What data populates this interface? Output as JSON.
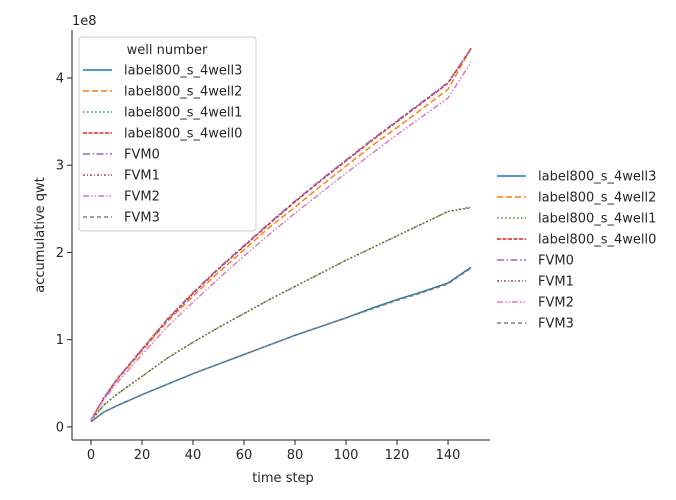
{
  "chart_data": {
    "type": "line",
    "xlabel": "time step",
    "ylabel": "accumulative qwt",
    "y_offset_text": "1e8",
    "y_scale": 100000000,
    "xlim": [
      -7.45,
      156.45
    ],
    "ylim": [
      -0.15,
      4.55
    ],
    "xticks": [
      0,
      20,
      40,
      60,
      80,
      100,
      120,
      140
    ],
    "yticks": [
      0,
      1,
      2,
      3,
      4
    ],
    "grid": false,
    "legend_inner": {
      "title": "well number",
      "placement": "upper-left"
    },
    "legend_outer": {
      "placement": "center-right"
    },
    "x": [
      0,
      5,
      10,
      20,
      30,
      40,
      50,
      60,
      70,
      80,
      90,
      100,
      110,
      120,
      130,
      140,
      149
    ],
    "series": [
      {
        "name": "label800_s_4well3",
        "color": "#1f77b4",
        "dash": "solid",
        "values": [
          0.06,
          0.17,
          0.24,
          0.37,
          0.49,
          0.61,
          0.72,
          0.83,
          0.94,
          1.05,
          1.15,
          1.25,
          1.36,
          1.46,
          1.55,
          1.65,
          1.83
        ]
      },
      {
        "name": "label800_s_4well2",
        "color": "#ff7f0e",
        "dash": "dashed",
        "values": [
          0.08,
          0.32,
          0.53,
          0.87,
          1.21,
          1.5,
          1.77,
          2.03,
          2.29,
          2.52,
          2.76,
          2.99,
          3.22,
          3.43,
          3.65,
          3.87,
          4.34
        ]
      },
      {
        "name": "label800_s_4well1",
        "color": "#2ca02c",
        "dash": "dotted",
        "values": [
          0.07,
          0.25,
          0.37,
          0.58,
          0.79,
          0.97,
          1.14,
          1.3,
          1.46,
          1.61,
          1.76,
          1.91,
          2.05,
          2.19,
          2.33,
          2.47,
          2.51
        ]
      },
      {
        "name": "label800_s_4well0",
        "color": "#d62728",
        "dash": "dashdot-dense",
        "values": [
          0.08,
          0.33,
          0.54,
          0.89,
          1.23,
          1.53,
          1.81,
          2.07,
          2.33,
          2.58,
          2.82,
          3.05,
          3.28,
          3.5,
          3.72,
          3.94,
          4.34
        ]
      },
      {
        "name": "FVM0",
        "color": "#9467bd",
        "dash": "dashdot",
        "values": [
          0.08,
          0.33,
          0.54,
          0.89,
          1.24,
          1.54,
          1.82,
          2.08,
          2.34,
          2.59,
          2.83,
          3.06,
          3.29,
          3.51,
          3.73,
          3.95,
          4.33
        ]
      },
      {
        "name": "FVM1",
        "color": "#8c564b",
        "dash": "dotdash",
        "values": [
          0.07,
          0.25,
          0.37,
          0.58,
          0.79,
          0.97,
          1.14,
          1.3,
          1.46,
          1.61,
          1.76,
          1.91,
          2.05,
          2.19,
          2.33,
          2.47,
          2.52
        ]
      },
      {
        "name": "FVM2",
        "color": "#e377c2",
        "dash": "dashdotdot",
        "values": [
          0.08,
          0.31,
          0.5,
          0.83,
          1.15,
          1.43,
          1.7,
          1.96,
          2.21,
          2.45,
          2.68,
          2.91,
          3.13,
          3.35,
          3.56,
          3.77,
          4.18
        ]
      },
      {
        "name": "FVM3",
        "color": "#7f7f7f",
        "dash": "loosedash",
        "values": [
          0.06,
          0.17,
          0.24,
          0.37,
          0.49,
          0.61,
          0.72,
          0.83,
          0.94,
          1.05,
          1.15,
          1.25,
          1.35,
          1.45,
          1.54,
          1.64,
          1.82
        ]
      }
    ]
  }
}
